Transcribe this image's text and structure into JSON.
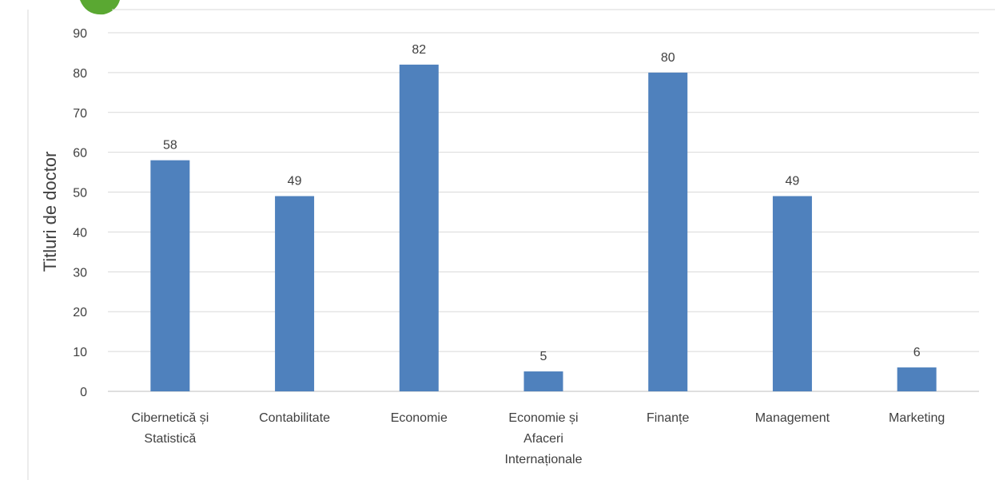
{
  "chart_data": {
    "type": "bar",
    "title": "",
    "ylabel": "Titluri de doctor",
    "xlabel": "",
    "ylim": [
      0,
      90
    ],
    "ytick_step": 10,
    "grid": true,
    "data_labels": true,
    "bar_color": "#4f81bd",
    "categories": [
      [
        "Cibernetică și",
        "Statistică"
      ],
      [
        "Contabilitate"
      ],
      [
        "Economie"
      ],
      [
        "Economie și",
        "Afaceri",
        "Internaționale"
      ],
      [
        "Finanțe"
      ],
      [
        "Management"
      ],
      [
        "Marketing"
      ]
    ],
    "values": [
      58,
      49,
      82,
      5,
      80,
      49,
      6
    ]
  },
  "logo": {
    "icon": "green-leaf-logo-icon",
    "color": "#5aa832"
  }
}
